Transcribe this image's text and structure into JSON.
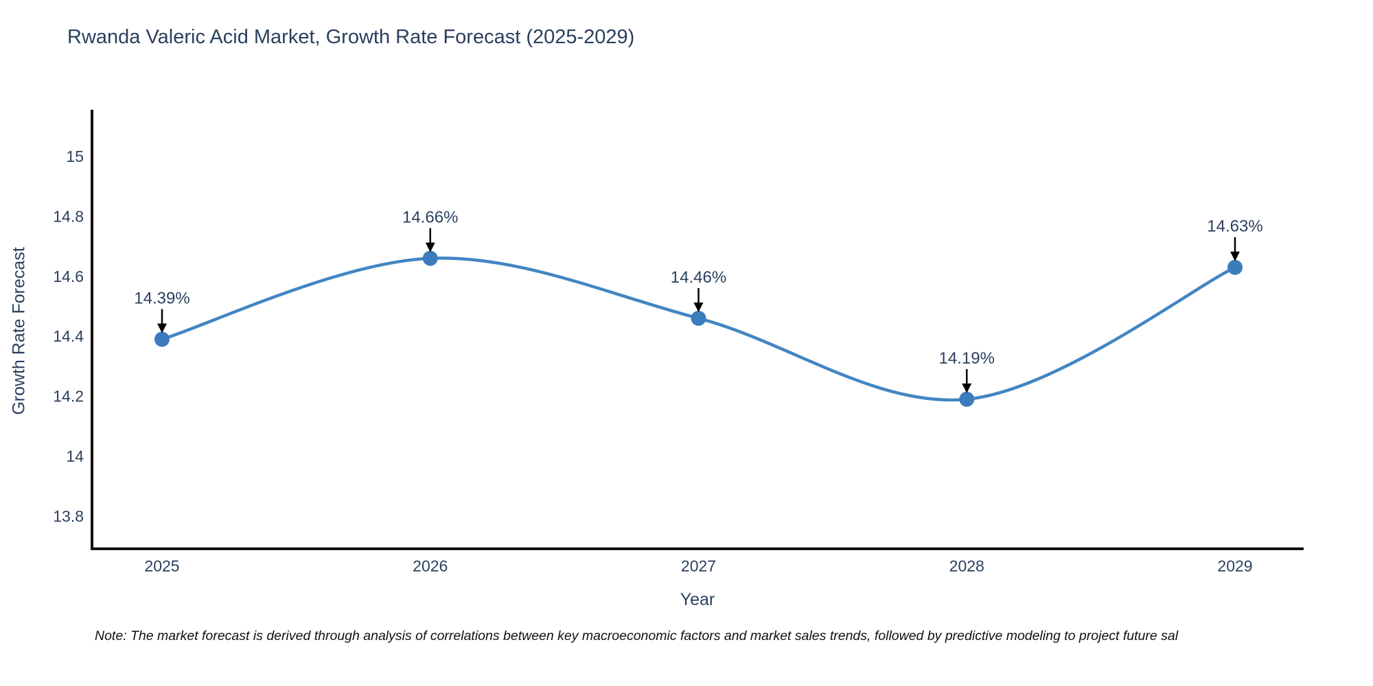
{
  "title": "Rwanda Valeric Acid Market, Growth Rate Forecast (2025-2029)",
  "note": "Note: The market forecast is derived through analysis of correlations between key macroeconomic factors and market sales trends, followed by predictive modeling to project future sal",
  "chart_data": {
    "type": "line",
    "line_shape": "spline",
    "title": "Rwanda Valeric Acid Market, Growth Rate Forecast (2025-2029)",
    "xlabel": "Year",
    "ylabel": "Growth Rate Forecast",
    "categories": [
      "2025",
      "2026",
      "2027",
      "2028",
      "2029"
    ],
    "series": [
      {
        "name": "Growth Rate Forecast",
        "values": [
          14.39,
          14.66,
          14.46,
          14.19,
          14.63
        ]
      }
    ],
    "point_labels": [
      "14.39%",
      "14.66%",
      "14.46%",
      "14.19%",
      "14.63%"
    ],
    "yticks": [
      "15",
      "14.8",
      "14.6",
      "14.4",
      "14.2",
      "14",
      "13.8"
    ],
    "ylim": [
      13.69,
      15.16
    ],
    "grid": false,
    "legend": "none",
    "marker": "circle",
    "annotation_arrow": "down-arrow",
    "colors": {
      "line": "#4285c2",
      "marker": "#3b7cbd",
      "arrow": "#000000",
      "title": "#2a3f5f",
      "tick": "#2a3f5f",
      "annotation": "#2a3f5f",
      "axis": "#111111",
      "note": "#111111",
      "background": "#ffffff"
    }
  }
}
